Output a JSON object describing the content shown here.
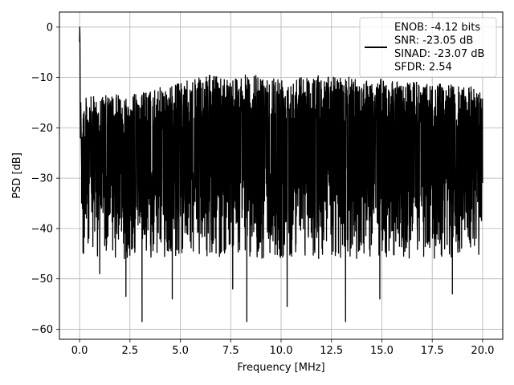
{
  "chart_data": {
    "type": "line",
    "title": "",
    "xlabel": "Frequency [MHz]",
    "ylabel": "PSD [dB]",
    "xlim": [
      -1.0,
      21.0
    ],
    "ylim": [
      -62,
      3
    ],
    "xticks": [
      0.0,
      2.5,
      5.0,
      7.5,
      10.0,
      12.5,
      15.0,
      17.5,
      20.0
    ],
    "xtick_labels": [
      "0.0",
      "2.5",
      "5.0",
      "7.5",
      "10.0",
      "12.5",
      "15.0",
      "17.5",
      "20.0"
    ],
    "yticks": [
      0,
      -10,
      -20,
      -30,
      -40,
      -50,
      -60
    ],
    "ytick_labels": [
      "0",
      "−10",
      "−20",
      "−30",
      "−40",
      "−50",
      "−60"
    ],
    "grid": true,
    "legend_position": "top-right",
    "legend_lines": [
      "ENOB: -4.12 bits",
      "SNR: -23.05 dB",
      "SINAD: -23.07 dB",
      "SFDR: 2.54"
    ],
    "series": [
      {
        "color": "#000000",
        "x": [
          0.0,
          0.01,
          0.02,
          0.04,
          0.06,
          0.1,
          0.2,
          1.0,
          2.3,
          3.1,
          4.6,
          7.6,
          8.3,
          10.3,
          13.2,
          14.9,
          18.5,
          20.0
        ],
        "values": [
          -3.0,
          0.0,
          -2.5,
          -22,
          -15,
          -28,
          -30,
          -49,
          -53.5,
          -58.5,
          -54,
          -52,
          -58.5,
          -55.5,
          -58.5,
          -54,
          -53,
          -30
        ],
        "noise": {
          "x_start": 0.0,
          "x_end": 20.0,
          "floor_mean_db": -26,
          "upper_envelope_db": [
            [
              0.0,
              -14
            ],
            [
              3.0,
              -13
            ],
            [
              6.5,
              -9.5
            ],
            [
              9.0,
              -9.5
            ],
            [
              12.0,
              -9.5
            ],
            [
              15.5,
              -10.5
            ],
            [
              20.0,
              -12
            ]
          ],
          "lower_typical_db": -38
        }
      }
    ]
  }
}
